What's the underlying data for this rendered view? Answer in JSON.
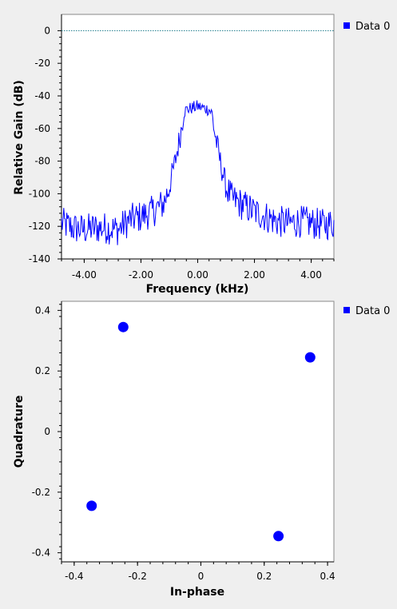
{
  "chart_data": [
    {
      "type": "line",
      "xlabel": "Frequency (kHz)",
      "ylabel": "Relative Gain (dB)",
      "xlim": [
        -4.8,
        4.8
      ],
      "ylim": [
        -140,
        10
      ],
      "xticks": [
        -4,
        -2,
        0,
        2,
        4
      ],
      "xtick_labels": [
        "-4.00",
        "-2.00",
        "0.00",
        "2.00",
        "4.00"
      ],
      "yticks": [
        0,
        -20,
        -40,
        -60,
        -80,
        -100,
        -120,
        -140
      ],
      "ytick_labels": [
        "0",
        "-20",
        "-40",
        "-60",
        "-80",
        "-100",
        "-120",
        "-140"
      ],
      "legend": "right",
      "reference_line": {
        "y": 0,
        "color": "#1a7a8a",
        "style": "dotted"
      },
      "series": [
        {
          "name": "Data 0",
          "color": "#0000ff",
          "x": [
            -4.8,
            -4.4,
            -4.0,
            -3.6,
            -3.2,
            -2.8,
            -2.4,
            -2.0,
            -1.6,
            -1.2,
            -1.0,
            -0.8,
            -0.6,
            -0.5,
            -0.4,
            -0.2,
            0.0,
            0.2,
            0.4,
            0.5,
            0.6,
            0.8,
            1.0,
            1.2,
            1.6,
            2.0,
            2.4,
            2.8,
            3.2,
            3.6,
            4.0,
            4.4,
            4.8
          ],
          "values": [
            -117,
            -120,
            -121,
            -120,
            -120,
            -121,
            -115,
            -113,
            -110,
            -105,
            -95,
            -80,
            -62,
            -50,
            -48,
            -47,
            -46,
            -47,
            -48,
            -50,
            -62,
            -80,
            -95,
            -102,
            -106,
            -110,
            -113,
            -116,
            -117,
            -116,
            -117,
            -118,
            -117
          ]
        }
      ]
    },
    {
      "type": "scatter",
      "xlabel": "In-phase",
      "ylabel": "Quadrature",
      "xlim": [
        -0.44,
        0.42
      ],
      "ylim": [
        -0.43,
        0.43
      ],
      "xticks": [
        -0.4,
        -0.2,
        0,
        0.2,
        0.4
      ],
      "xtick_labels": [
        "-0.4",
        "-0.2",
        "0",
        "0.2",
        "0.4"
      ],
      "yticks": [
        0.4,
        0.2,
        0,
        -0.2,
        -0.4
      ],
      "ytick_labels": [
        "0.4",
        "0.2",
        "0",
        "-0.2",
        "-0.4"
      ],
      "legend": "right",
      "series": [
        {
          "name": "Data 0",
          "color": "#0000ff",
          "points": [
            [
              -0.245,
              0.345
            ],
            [
              0.345,
              0.245
            ],
            [
              -0.345,
              -0.245
            ],
            [
              0.245,
              -0.345
            ]
          ]
        }
      ]
    }
  ]
}
